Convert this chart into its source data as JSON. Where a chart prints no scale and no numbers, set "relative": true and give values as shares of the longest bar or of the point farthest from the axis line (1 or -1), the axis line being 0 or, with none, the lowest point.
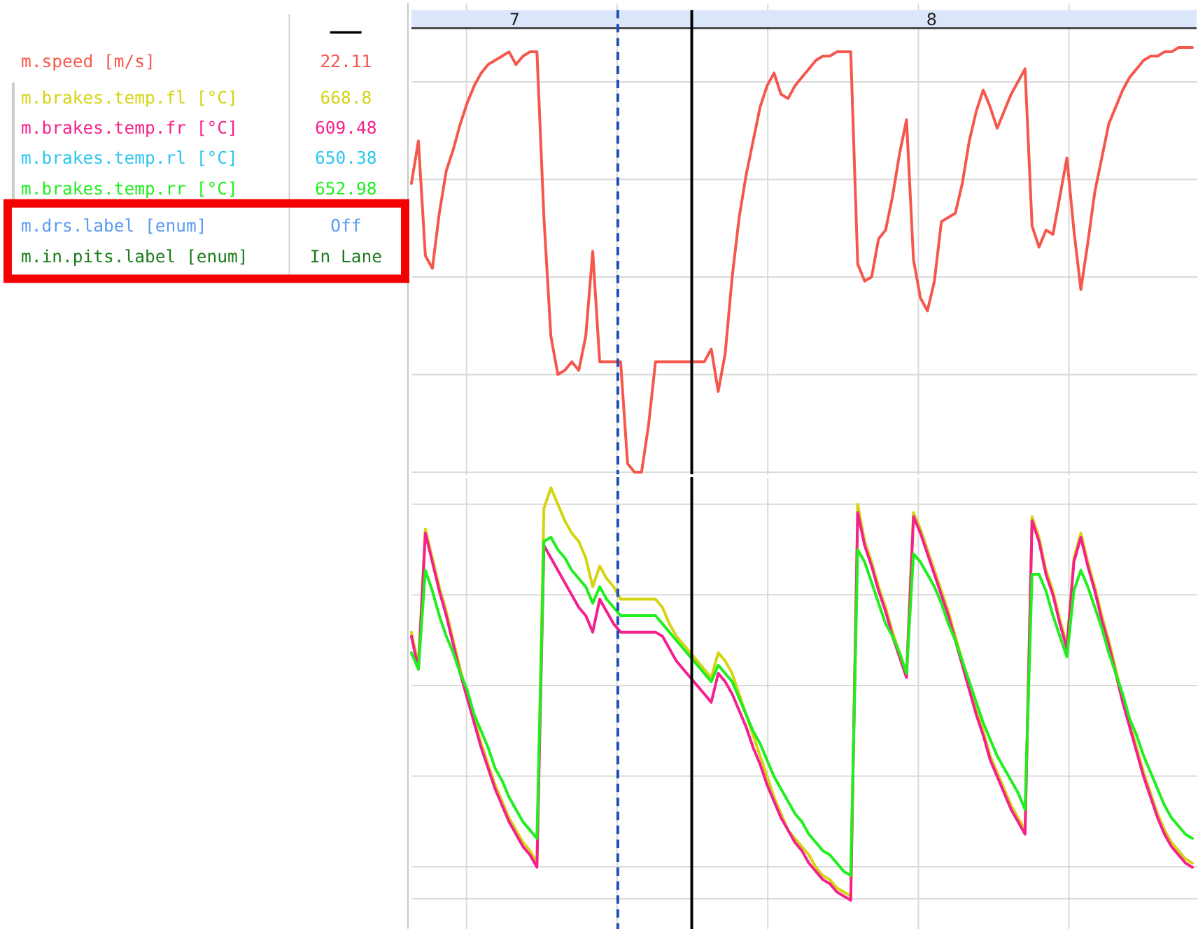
{
  "chart_data": [
    {
      "type": "line",
      "relative": true,
      "legend": "left",
      "legend_title": "—",
      "grid": true,
      "tick_labels": false,
      "categories": [
        null,
        null,
        null,
        null,
        null,
        null,
        null,
        null,
        null,
        null,
        null,
        null,
        null,
        null,
        null,
        null,
        null,
        null,
        null,
        null,
        null,
        null,
        null,
        null,
        null,
        null,
        null,
        null,
        null,
        null,
        null,
        null,
        null,
        null,
        null,
        null,
        null,
        null,
        null,
        null,
        null,
        null,
        null,
        null,
        null,
        null,
        null,
        null,
        null,
        null,
        null,
        null,
        null,
        null,
        null,
        null,
        null,
        null,
        null,
        null,
        null,
        null,
        null,
        null,
        null,
        null,
        null,
        null,
        null,
        null,
        null,
        null,
        null,
        null,
        null,
        null,
        null,
        null,
        null,
        null,
        null,
        null,
        null,
        null,
        null,
        null,
        null,
        null,
        null,
        null,
        null,
        null,
        null,
        null,
        null,
        null,
        null,
        null,
        null,
        null,
        null,
        null,
        null,
        null,
        null,
        null,
        null,
        null,
        null,
        null,
        null,
        null,
        null
      ],
      "series": [
        {
          "name": "m.speed [m/s]",
          "color": "#f5574c",
          "values": [
            0.68,
            0.78,
            0.51,
            0.48,
            0.61,
            0.71,
            0.76,
            0.82,
            0.87,
            0.91,
            0.94,
            0.96,
            0.97,
            0.98,
            0.99,
            0.96,
            0.98,
            0.99,
            0.99,
            0.6,
            0.32,
            0.23,
            0.24,
            0.26,
            0.24,
            0.32,
            0.52,
            0.26,
            0.26,
            0.26,
            0.26,
            0.02,
            0.0,
            0.0,
            0.11,
            0.26,
            0.26,
            0.26,
            0.26,
            0.26,
            0.26,
            0.26,
            0.26,
            0.29,
            0.19,
            0.28,
            0.46,
            0.6,
            0.7,
            0.78,
            0.86,
            0.91,
            0.94,
            0.89,
            0.88,
            0.91,
            0.93,
            0.95,
            0.97,
            0.98,
            0.98,
            0.99,
            0.99,
            0.99,
            0.49,
            0.45,
            0.46,
            0.55,
            0.57,
            0.65,
            0.75,
            0.83,
            0.5,
            0.41,
            0.38,
            0.45,
            0.59,
            0.6,
            0.61,
            0.68,
            0.78,
            0.85,
            0.9,
            0.86,
            0.81,
            0.85,
            0.89,
            0.92,
            0.95,
            0.58,
            0.53,
            0.57,
            0.56,
            0.65,
            0.74,
            0.57,
            0.43,
            0.54,
            0.66,
            0.74,
            0.82,
            0.86,
            0.9,
            0.93,
            0.95,
            0.97,
            0.98,
            0.98,
            0.99,
            0.99,
            1.0,
            1.0,
            1.0
          ]
        }
      ],
      "annotations": [
        "7",
        "8",
        "22.11"
      ]
    },
    {
      "type": "line",
      "relative": true,
      "legend": "left",
      "grid": true,
      "tick_labels": false,
      "categories": [
        null,
        null,
        null,
        null,
        null,
        null,
        null,
        null,
        null,
        null,
        null,
        null,
        null,
        null,
        null,
        null,
        null,
        null,
        null,
        null,
        null,
        null,
        null,
        null,
        null,
        null,
        null,
        null,
        null,
        null,
        null,
        null,
        null,
        null,
        null,
        null,
        null,
        null,
        null,
        null,
        null,
        null,
        null,
        null,
        null,
        null,
        null,
        null,
        null,
        null,
        null,
        null,
        null,
        null,
        null,
        null,
        null,
        null,
        null,
        null,
        null,
        null,
        null,
        null,
        null,
        null,
        null,
        null,
        null,
        null,
        null,
        null,
        null,
        null,
        null,
        null,
        null,
        null,
        null,
        null,
        null,
        null,
        null,
        null,
        null,
        null,
        null,
        null,
        null,
        null,
        null,
        null,
        null,
        null,
        null,
        null,
        null,
        null,
        null,
        null,
        null,
        null,
        null,
        null,
        null,
        null,
        null,
        null,
        null,
        null,
        null,
        null,
        null
      ],
      "series": [
        {
          "name": "m.brakes.temp.fl [°C]",
          "color": "#d4d411",
          "values": [
            0.65,
            0.57,
            0.9,
            0.83,
            0.76,
            0.7,
            0.63,
            0.56,
            0.5,
            0.44,
            0.38,
            0.33,
            0.28,
            0.24,
            0.2,
            0.17,
            0.14,
            0.12,
            0.09,
            0.95,
            1.0,
            0.96,
            0.92,
            0.89,
            0.87,
            0.83,
            0.76,
            0.81,
            0.78,
            0.76,
            0.73,
            0.73,
            0.73,
            0.73,
            0.73,
            0.73,
            0.71,
            0.67,
            0.64,
            0.62,
            0.6,
            0.58,
            0.56,
            0.54,
            0.6,
            0.58,
            0.55,
            0.5,
            0.45,
            0.4,
            0.35,
            0.3,
            0.25,
            0.21,
            0.17,
            0.15,
            0.13,
            0.11,
            0.08,
            0.06,
            0.05,
            0.03,
            0.02,
            0.01,
            0.96,
            0.87,
            0.82,
            0.76,
            0.71,
            0.65,
            0.6,
            0.55,
            0.94,
            0.9,
            0.85,
            0.8,
            0.75,
            0.7,
            0.64,
            0.58,
            0.52,
            0.46,
            0.41,
            0.35,
            0.31,
            0.27,
            0.23,
            0.2,
            0.17,
            0.93,
            0.88,
            0.8,
            0.75,
            0.68,
            0.62,
            0.83,
            0.89,
            0.82,
            0.76,
            0.69,
            0.63,
            0.56,
            0.49,
            0.43,
            0.37,
            0.31,
            0.26,
            0.21,
            0.17,
            0.14,
            0.12,
            0.1,
            0.09
          ]
        },
        {
          "name": "m.brakes.temp.fr [°C]",
          "color": "#f5208d",
          "values": [
            0.64,
            0.56,
            0.89,
            0.82,
            0.75,
            0.69,
            0.62,
            0.55,
            0.49,
            0.43,
            0.37,
            0.32,
            0.27,
            0.23,
            0.19,
            0.16,
            0.13,
            0.11,
            0.08,
            0.86,
            0.83,
            0.8,
            0.77,
            0.74,
            0.71,
            0.69,
            0.65,
            0.73,
            0.7,
            0.67,
            0.65,
            0.65,
            0.65,
            0.65,
            0.65,
            0.65,
            0.64,
            0.61,
            0.58,
            0.56,
            0.54,
            0.52,
            0.5,
            0.48,
            0.55,
            0.53,
            0.5,
            0.46,
            0.42,
            0.37,
            0.33,
            0.28,
            0.24,
            0.2,
            0.17,
            0.14,
            0.12,
            0.09,
            0.07,
            0.05,
            0.04,
            0.02,
            0.01,
            0.0,
            0.94,
            0.86,
            0.81,
            0.75,
            0.7,
            0.64,
            0.59,
            0.54,
            0.93,
            0.89,
            0.84,
            0.79,
            0.74,
            0.69,
            0.63,
            0.57,
            0.51,
            0.45,
            0.4,
            0.34,
            0.3,
            0.26,
            0.22,
            0.19,
            0.16,
            0.92,
            0.87,
            0.79,
            0.74,
            0.67,
            0.61,
            0.82,
            0.88,
            0.81,
            0.75,
            0.68,
            0.62,
            0.55,
            0.48,
            0.42,
            0.36,
            0.3,
            0.25,
            0.2,
            0.16,
            0.13,
            0.11,
            0.09,
            0.08
          ]
        },
        {
          "name": "m.brakes.temp.rl [°C]",
          "color": "#2ec5ef",
          "values": [
            null,
            null,
            null,
            null,
            null,
            null,
            null,
            null,
            null,
            null,
            null,
            null,
            null,
            null,
            null,
            null,
            null,
            null,
            null,
            null,
            null,
            null,
            null,
            null,
            null,
            null,
            null,
            null,
            null,
            null,
            null,
            null,
            null,
            null,
            null,
            null,
            null,
            null,
            null,
            null,
            null,
            null,
            null,
            null,
            null,
            null,
            null,
            null,
            null,
            null,
            null,
            null,
            null,
            null,
            null,
            null,
            null,
            null,
            null,
            null,
            null,
            null,
            null,
            null,
            null,
            null,
            null,
            null,
            null,
            null,
            null,
            null,
            null,
            null,
            null,
            null,
            null,
            null,
            null,
            null,
            null,
            null,
            null,
            null,
            null,
            null,
            null,
            null,
            null,
            null,
            null,
            null,
            null,
            null,
            null,
            null,
            null,
            null,
            null,
            null,
            null,
            null,
            null,
            null,
            null,
            null,
            null,
            null,
            null,
            null,
            null,
            null,
            null
          ]
        },
        {
          "name": "m.brakes.temp.rr [°C]",
          "color": "#1fef1f",
          "values": [
            0.6,
            0.56,
            0.8,
            0.75,
            0.69,
            0.64,
            0.6,
            0.55,
            0.51,
            0.45,
            0.41,
            0.37,
            0.32,
            0.29,
            0.25,
            0.22,
            0.19,
            0.17,
            0.15,
            0.87,
            0.88,
            0.85,
            0.83,
            0.8,
            0.78,
            0.76,
            0.72,
            0.76,
            0.73,
            0.71,
            0.69,
            0.69,
            0.69,
            0.69,
            0.69,
            0.69,
            0.67,
            0.65,
            0.63,
            0.61,
            0.59,
            0.57,
            0.55,
            0.53,
            0.57,
            0.55,
            0.53,
            0.49,
            0.45,
            0.41,
            0.38,
            0.34,
            0.3,
            0.27,
            0.24,
            0.21,
            0.19,
            0.16,
            0.14,
            0.12,
            0.11,
            0.09,
            0.07,
            0.06,
            0.85,
            0.82,
            0.77,
            0.72,
            0.67,
            0.64,
            0.6,
            0.55,
            0.84,
            0.82,
            0.79,
            0.76,
            0.72,
            0.67,
            0.63,
            0.58,
            0.53,
            0.48,
            0.43,
            0.39,
            0.35,
            0.32,
            0.29,
            0.26,
            0.22,
            0.79,
            0.79,
            0.75,
            0.69,
            0.64,
            0.59,
            0.75,
            0.8,
            0.76,
            0.71,
            0.66,
            0.6,
            0.55,
            0.5,
            0.44,
            0.4,
            0.35,
            0.31,
            0.27,
            0.23,
            0.2,
            0.18,
            0.16,
            0.15
          ]
        }
      ],
      "annotations": [
        "668.8",
        "609.48",
        "650.38",
        "652.98"
      ]
    },
    {
      "type": "other",
      "annotations": [
        "m.drs.label [enum]",
        "Off",
        "m.in.pits.label [enum]",
        "In Lane"
      ]
    }
  ]
}
